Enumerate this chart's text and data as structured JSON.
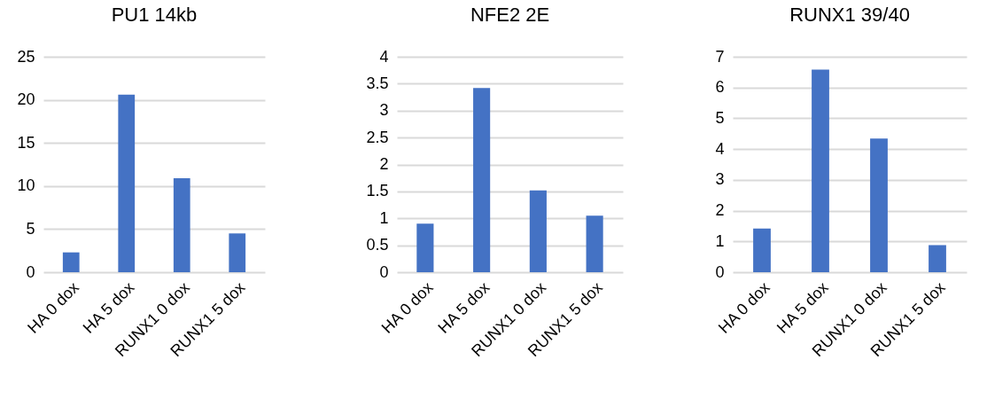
{
  "chart_data": [
    {
      "type": "bar",
      "title": "PU1 14kb",
      "categories": [
        "HA 0 dox",
        "HA 5 dox",
        "RUNX1 0 dox",
        "RUNX1 5 dox"
      ],
      "values": [
        2.3,
        20.6,
        10.9,
        4.5
      ],
      "color": "#4472c4",
      "ylim": [
        0,
        25
      ],
      "yticks": [
        0,
        5,
        10,
        15,
        20,
        25
      ],
      "grid": "y"
    },
    {
      "type": "bar",
      "title": "NFE2 2E",
      "categories": [
        "HA 0 dox",
        "HA 5 dox",
        "RUNX1 0 dox",
        "RUNX1 5 dox"
      ],
      "values": [
        0.9,
        3.42,
        1.52,
        1.05
      ],
      "color": "#4472c4",
      "ylim": [
        0,
        4
      ],
      "yticks": [
        0,
        0.5,
        1,
        1.5,
        2,
        2.5,
        3,
        3.5,
        4
      ],
      "grid": "y"
    },
    {
      "type": "bar",
      "title": "RUNX1 39/40",
      "categories": [
        "HA 0 dox",
        "HA 5 dox",
        "RUNX1 0 dox",
        "RUNX1 5 dox"
      ],
      "values": [
        1.42,
        6.58,
        4.34,
        0.88
      ],
      "color": "#4472c4",
      "ylim": [
        0,
        7
      ],
      "yticks": [
        0,
        1,
        2,
        3,
        4,
        5,
        6,
        7
      ],
      "grid": "y"
    }
  ]
}
